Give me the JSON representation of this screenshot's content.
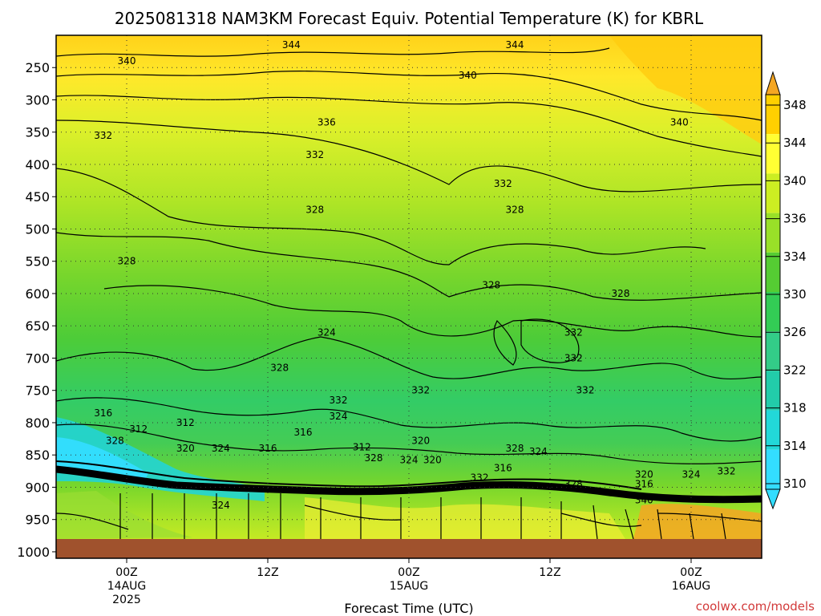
{
  "chart_data": {
    "type": "heatmap",
    "title": "2025081318 NAM3KM Forecast Equiv. Potential Temperature (K) for KBRL",
    "xlabel": "Forecast Time (UTC)",
    "ylabel": "",
    "credit": "coolwx.com/models",
    "x_ticks": [
      {
        "hour": 6,
        "line1": "00Z",
        "line2": "14AUG",
        "line3": "2025"
      },
      {
        "hour": 18,
        "line1": "12Z",
        "line2": "",
        "line3": ""
      },
      {
        "hour": 30,
        "line1": "00Z",
        "line2": "15AUG",
        "line3": ""
      },
      {
        "hour": 42,
        "line1": "12Z",
        "line2": "",
        "line3": ""
      },
      {
        "hour": 54,
        "line1": "00Z",
        "line2": "16AUG",
        "line3": ""
      }
    ],
    "xlim": [
      0,
      60
    ],
    "y_ticks": [
      "250",
      "300",
      "350",
      "400",
      "450",
      "500",
      "550",
      "600",
      "650",
      "700",
      "750",
      "800",
      "850",
      "900",
      "950",
      "1000"
    ],
    "ylim": [
      1010,
      200
    ],
    "colorbar": {
      "labels": [
        "348",
        "344",
        "340",
        "336",
        "334",
        "330",
        "326",
        "322",
        "318",
        "314",
        "310"
      ],
      "values": [
        348,
        344,
        340,
        336,
        334,
        330,
        326,
        322,
        318,
        314,
        310
      ],
      "colors": [
        "#f4a623",
        "#ffd000",
        "#ffff33",
        "#ccee22",
        "#99e028",
        "#55cc33",
        "#33cc55",
        "#33cc88",
        "#22ccaa",
        "#22d8d8",
        "#33ddff"
      ]
    },
    "contour_labels": [
      {
        "text": "344",
        "hour": 20,
        "p": 215
      },
      {
        "text": "344",
        "hour": 39,
        "p": 215
      },
      {
        "text": "340",
        "hour": 6,
        "p": 240
      },
      {
        "text": "340",
        "hour": 35,
        "p": 262
      },
      {
        "text": "340",
        "hour": 53,
        "p": 335
      },
      {
        "text": "336",
        "hour": 23,
        "p": 335
      },
      {
        "text": "332",
        "hour": 4,
        "p": 355
      },
      {
        "text": "332",
        "hour": 22,
        "p": 385
      },
      {
        "text": "332",
        "hour": 38,
        "p": 430
      },
      {
        "text": "328",
        "hour": 22,
        "p": 470
      },
      {
        "text": "328",
        "hour": 39,
        "p": 470
      },
      {
        "text": "328",
        "hour": 6,
        "p": 550
      },
      {
        "text": "328",
        "hour": 37,
        "p": 587
      },
      {
        "text": "328",
        "hour": 48,
        "p": 600
      },
      {
        "text": "324",
        "hour": 23,
        "p": 660
      },
      {
        "text": "332",
        "hour": 44,
        "p": 660
      },
      {
        "text": "332",
        "hour": 44,
        "p": 700
      },
      {
        "text": "328",
        "hour": 19,
        "p": 715
      },
      {
        "text": "332",
        "hour": 31,
        "p": 750
      },
      {
        "text": "332",
        "hour": 45,
        "p": 750
      },
      {
        "text": "332",
        "hour": 24,
        "p": 765
      },
      {
        "text": "324",
        "hour": 24,
        "p": 790
      },
      {
        "text": "316",
        "hour": 4,
        "p": 785
      },
      {
        "text": "312",
        "hour": 7,
        "p": 810
      },
      {
        "text": "312",
        "hour": 11,
        "p": 800
      },
      {
        "text": "316",
        "hour": 21,
        "p": 815
      },
      {
        "text": "328",
        "hour": 5,
        "p": 828
      },
      {
        "text": "320",
        "hour": 11,
        "p": 840
      },
      {
        "text": "324",
        "hour": 14,
        "p": 840
      },
      {
        "text": "316",
        "hour": 18,
        "p": 840
      },
      {
        "text": "312",
        "hour": 26,
        "p": 838
      },
      {
        "text": "320",
        "hour": 31,
        "p": 828
      },
      {
        "text": "328",
        "hour": 39,
        "p": 840
      },
      {
        "text": "324",
        "hour": 41,
        "p": 845
      },
      {
        "text": "328",
        "hour": 27,
        "p": 855
      },
      {
        "text": "324",
        "hour": 30,
        "p": 858
      },
      {
        "text": "320",
        "hour": 32,
        "p": 858
      },
      {
        "text": "316",
        "hour": 38,
        "p": 870
      },
      {
        "text": "332",
        "hour": 36,
        "p": 885
      },
      {
        "text": "328",
        "hour": 44,
        "p": 895
      },
      {
        "text": "320",
        "hour": 50,
        "p": 880
      },
      {
        "text": "316",
        "hour": 50,
        "p": 895
      },
      {
        "text": "324",
        "hour": 54,
        "p": 880
      },
      {
        "text": "332",
        "hour": 57,
        "p": 875
      },
      {
        "text": "340",
        "hour": 50,
        "p": 920
      },
      {
        "text": "324",
        "hour": 14,
        "p": 928
      }
    ]
  }
}
